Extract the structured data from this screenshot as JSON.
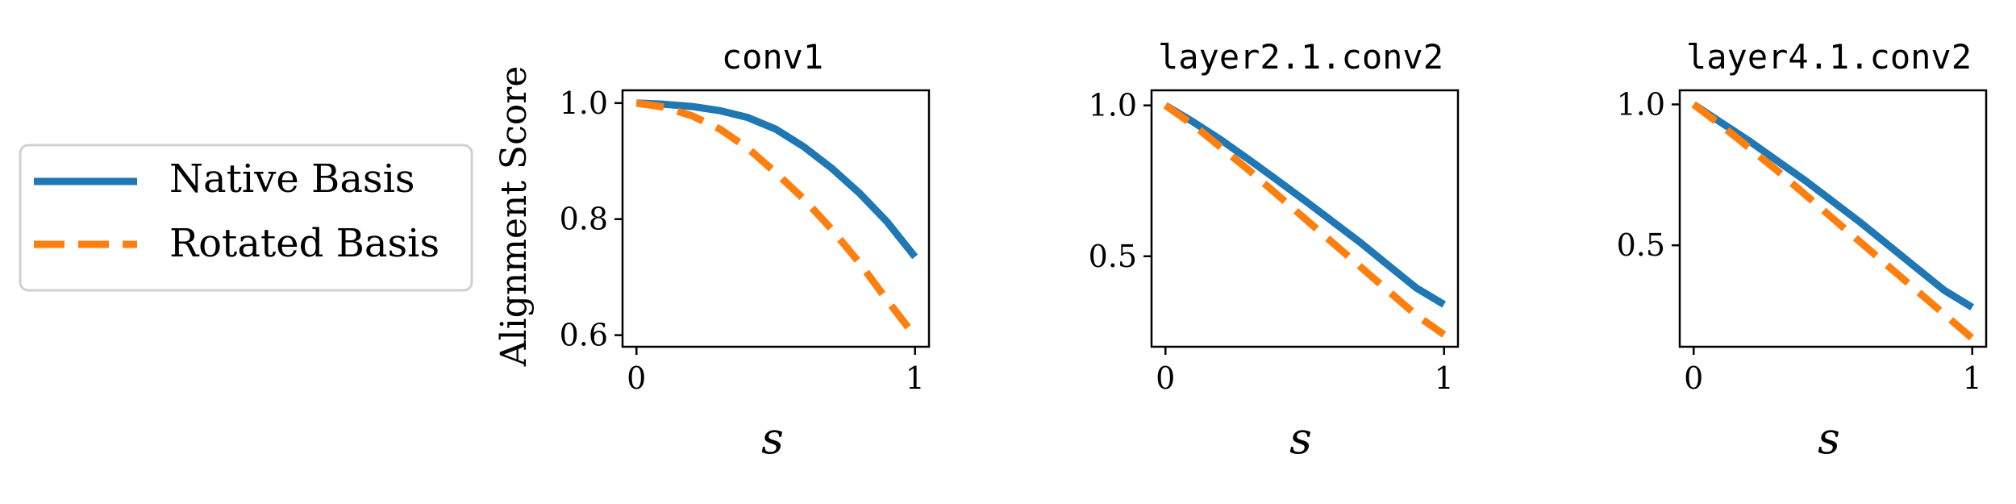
{
  "colors": {
    "native": "#1f77b4",
    "rotated": "#ff7f0e",
    "axis": "#000000"
  },
  "legend": {
    "placement": "left-outside",
    "entries": [
      {
        "label": "Native Basis",
        "style": "solid",
        "color": "#1f77b4"
      },
      {
        "label": "Rotated Basis",
        "style": "dashed",
        "color": "#ff7f0e"
      }
    ]
  },
  "shared": {
    "ylabel": "Alignment Score",
    "xlabel": "s"
  },
  "chart_data": [
    {
      "type": "line",
      "title": "conv1",
      "xlim": [
        -0.05,
        1.05
      ],
      "ylim": [
        0.58,
        1.022
      ],
      "xticks": [
        0,
        1
      ],
      "xtick_labels": [
        "0",
        "1"
      ],
      "yticks": [
        0.6,
        0.8,
        1.0
      ],
      "ytick_labels": [
        "0.6",
        "0.8",
        "1.0"
      ],
      "series": [
        {
          "name": "Native Basis",
          "x": [
            0,
            0.1,
            0.2,
            0.3,
            0.4,
            0.5,
            0.6,
            0.7,
            0.8,
            0.9,
            1.0
          ],
          "y": [
            1.0,
            0.998,
            0.994,
            0.987,
            0.975,
            0.955,
            0.925,
            0.888,
            0.845,
            0.795,
            0.735
          ]
        },
        {
          "name": "Rotated Basis",
          "x": [
            0,
            0.1,
            0.2,
            0.3,
            0.4,
            0.5,
            0.6,
            0.7,
            0.8,
            0.9,
            1.0
          ],
          "y": [
            1.0,
            0.993,
            0.978,
            0.955,
            0.922,
            0.88,
            0.835,
            0.783,
            0.725,
            0.66,
            0.598
          ]
        }
      ]
    },
    {
      "type": "line",
      "title": "layer2.1.conv2",
      "xlim": [
        -0.05,
        1.05
      ],
      "ylim": [
        0.2,
        1.05
      ],
      "xticks": [
        0,
        1
      ],
      "xtick_labels": [
        "0",
        "1"
      ],
      "yticks": [
        0.5,
        1.0
      ],
      "ytick_labels": [
        "0.5",
        "1.0"
      ],
      "series": [
        {
          "name": "Native Basis",
          "x": [
            0,
            0.1,
            0.2,
            0.3,
            0.4,
            0.5,
            0.6,
            0.7,
            0.8,
            0.9,
            1.0
          ],
          "y": [
            1.0,
            0.945,
            0.885,
            0.82,
            0.753,
            0.685,
            0.615,
            0.545,
            0.47,
            0.395,
            0.34
          ]
        },
        {
          "name": "Rotated Basis",
          "x": [
            0,
            0.1,
            0.2,
            0.3,
            0.4,
            0.5,
            0.6,
            0.7,
            0.8,
            0.9,
            1.0
          ],
          "y": [
            1.0,
            0.935,
            0.86,
            0.785,
            0.705,
            0.625,
            0.545,
            0.465,
            0.385,
            0.305,
            0.24
          ]
        }
      ]
    },
    {
      "type": "line",
      "title": "layer4.1.conv2",
      "xlim": [
        -0.05,
        1.05
      ],
      "ylim": [
        0.14,
        1.05
      ],
      "xticks": [
        0,
        1
      ],
      "xtick_labels": [
        "0",
        "1"
      ],
      "yticks": [
        0.5,
        1.0
      ],
      "ytick_labels": [
        "0.5",
        "1.0"
      ],
      "series": [
        {
          "name": "Native Basis",
          "x": [
            0,
            0.1,
            0.2,
            0.3,
            0.4,
            0.5,
            0.6,
            0.7,
            0.8,
            0.9,
            1.0
          ],
          "y": [
            1.0,
            0.935,
            0.87,
            0.8,
            0.73,
            0.655,
            0.58,
            0.5,
            0.42,
            0.34,
            0.28
          ]
        },
        {
          "name": "Rotated Basis",
          "x": [
            0,
            0.1,
            0.2,
            0.3,
            0.4,
            0.5,
            0.6,
            0.7,
            0.8,
            0.9,
            1.0
          ],
          "y": [
            1.0,
            0.925,
            0.845,
            0.765,
            0.68,
            0.595,
            0.51,
            0.425,
            0.34,
            0.255,
            0.17
          ]
        }
      ]
    }
  ]
}
